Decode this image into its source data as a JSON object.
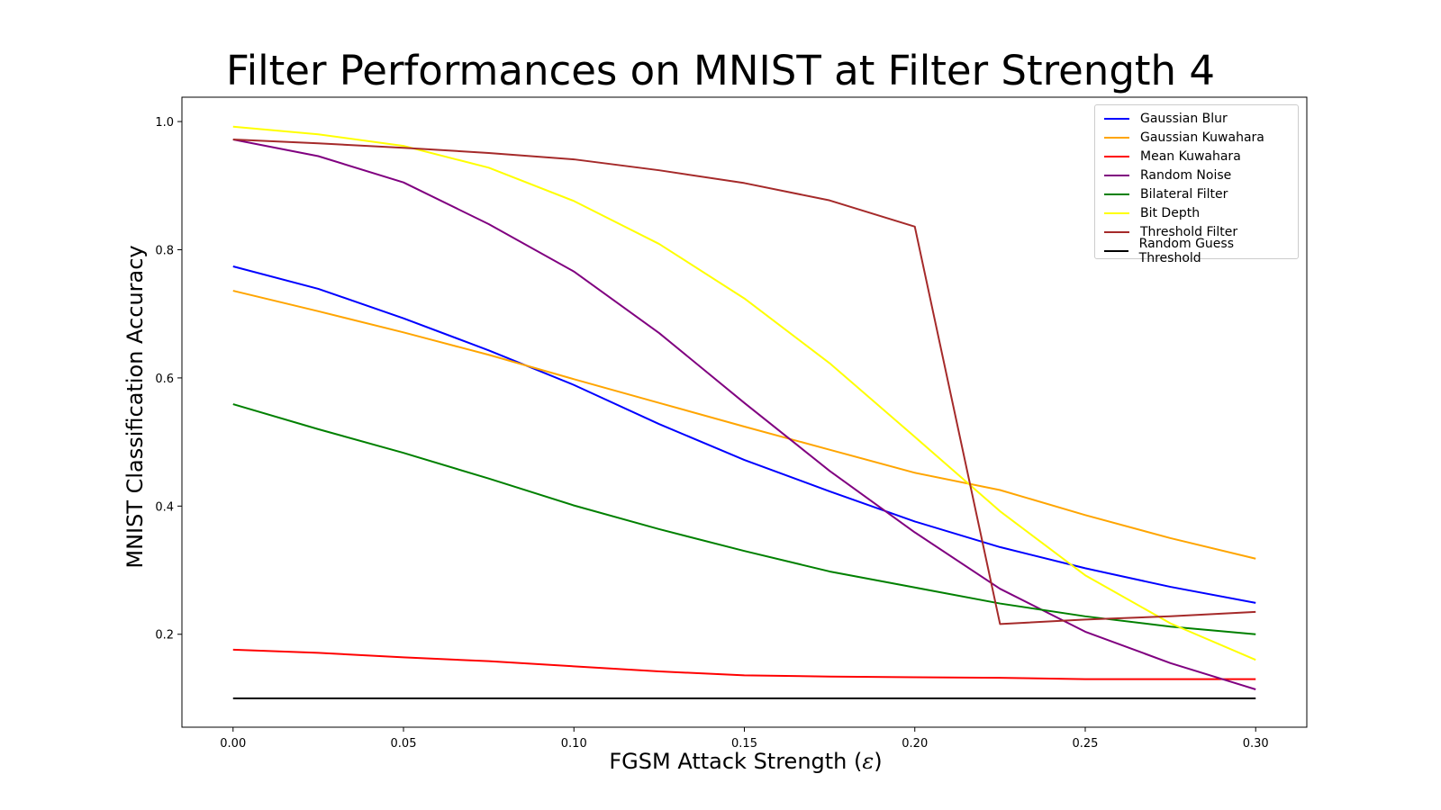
{
  "chart_data": {
    "type": "line",
    "title": "Filter Performances on MNIST at Filter Strength 4",
    "xlabel_text": "FGSM Attack Strength (",
    "xlabel_symbol": "ε",
    "xlabel_close": ")",
    "ylabel": "MNIST Classification Accuracy",
    "xlim": [
      -0.015,
      0.315
    ],
    "ylim": [
      0.055,
      1.038
    ],
    "xticks": [
      0.0,
      0.05,
      0.1,
      0.15,
      0.2,
      0.25,
      0.3
    ],
    "xtick_labels": [
      "0.00",
      "0.05",
      "0.10",
      "0.15",
      "0.20",
      "0.25",
      "0.30"
    ],
    "yticks": [
      0.2,
      0.4,
      0.6,
      0.8,
      1.0
    ],
    "ytick_labels": [
      "0.2",
      "0.4",
      "0.6",
      "0.8",
      "1.0"
    ],
    "grid": false,
    "legend_position": "top-right",
    "x": [
      0.0,
      0.025,
      0.05,
      0.075,
      0.1,
      0.125,
      0.15,
      0.175,
      0.2,
      0.225,
      0.25,
      0.275,
      0.3
    ],
    "series": [
      {
        "name": "Gaussian Blur",
        "color": "#0000ff",
        "values": [
          0.774,
          0.739,
          0.693,
          0.643,
          0.589,
          0.528,
          0.472,
          0.423,
          0.376,
          0.336,
          0.303,
          0.274,
          0.249
        ]
      },
      {
        "name": "Gaussian Kuwahara",
        "color": "#ffa500",
        "values": [
          0.736,
          0.704,
          0.671,
          0.636,
          0.598,
          0.561,
          0.524,
          0.488,
          0.452,
          0.425,
          0.386,
          0.35,
          0.318
        ]
      },
      {
        "name": "Mean Kuwahara",
        "color": "#ff0000",
        "values": [
          0.176,
          0.171,
          0.164,
          0.158,
          0.15,
          0.142,
          0.136,
          0.134,
          0.133,
          0.132,
          0.13,
          0.13,
          0.13
        ]
      },
      {
        "name": "Random Noise",
        "color": "#800080",
        "values": [
          0.972,
          0.946,
          0.905,
          0.84,
          0.766,
          0.67,
          0.561,
          0.455,
          0.359,
          0.271,
          0.204,
          0.155,
          0.114
        ]
      },
      {
        "name": "Bilateral Filter",
        "color": "#008000",
        "values": [
          0.559,
          0.52,
          0.483,
          0.443,
          0.401,
          0.364,
          0.33,
          0.298,
          0.273,
          0.248,
          0.228,
          0.212,
          0.2
        ]
      },
      {
        "name": "Bit Depth",
        "color": "#ffff00",
        "values": [
          0.992,
          0.98,
          0.962,
          0.928,
          0.876,
          0.809,
          0.724,
          0.623,
          0.508,
          0.392,
          0.292,
          0.217,
          0.16
        ]
      },
      {
        "name": "Threshold Filter",
        "color": "#a52a2a",
        "values": [
          0.972,
          0.966,
          0.959,
          0.951,
          0.941,
          0.924,
          0.904,
          0.877,
          0.836,
          0.216,
          0.223,
          0.228,
          0.235
        ]
      },
      {
        "name": "Random Guess Threshold",
        "color": "#000000",
        "values": [
          0.1,
          0.1,
          0.1,
          0.1,
          0.1,
          0.1,
          0.1,
          0.1,
          0.1,
          0.1,
          0.1,
          0.1,
          0.1
        ]
      }
    ]
  }
}
